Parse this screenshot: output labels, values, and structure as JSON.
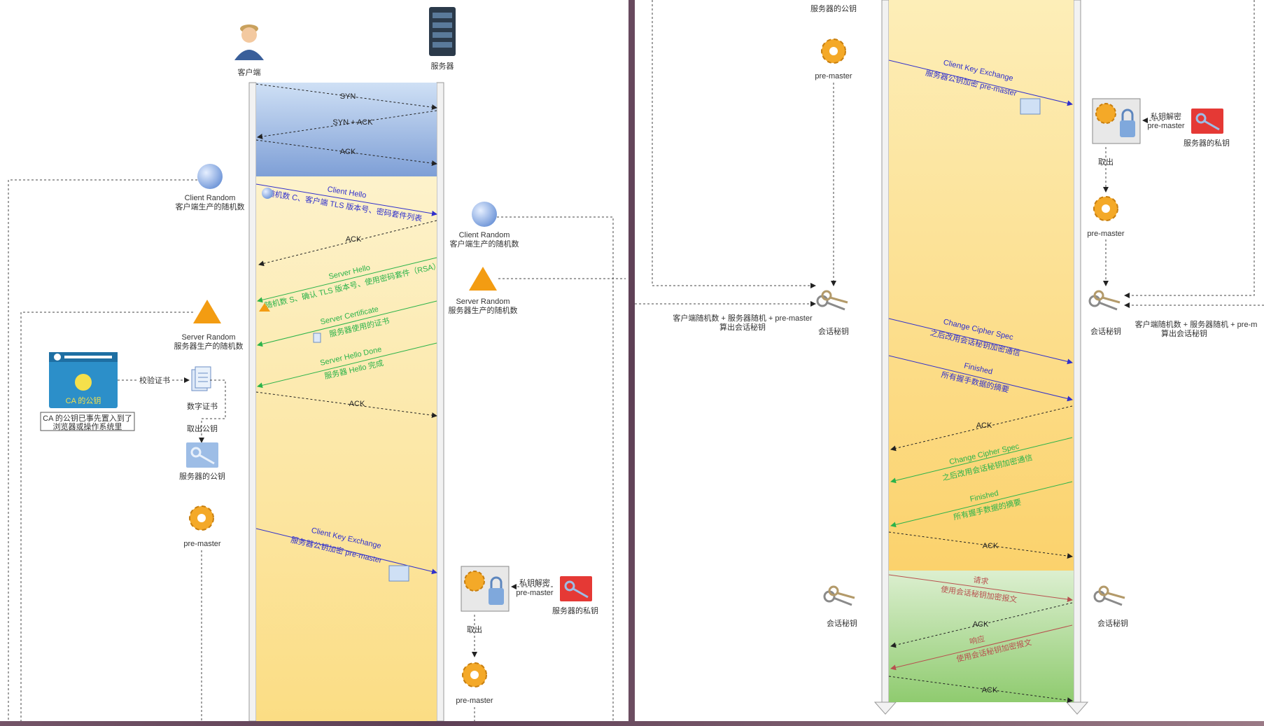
{
  "colors": {
    "handshake_tcp": "#8aa9d8",
    "handshake_tls": "#fdeaa6",
    "data_phase": "#a8d48f",
    "client_arrow": "#3030cc",
    "server_arrow": "#2bb34a",
    "data_arrow": "#b8504e",
    "ack_arrow": "#222222"
  },
  "left": {
    "actors": {
      "client": "客户端",
      "server": "服务器"
    },
    "tcp": {
      "syn": "SYN",
      "synack": "SYN + ACK",
      "ack": "ACK"
    },
    "client_hello": {
      "title": "Client Hello",
      "desc": "随机数 C、客户端 TLS 版本号、密码套件列表"
    },
    "ack1": "ACK",
    "server_hello": {
      "title": "Server Hello",
      "desc": "随机数 S、确认 TLS 版本号、使用密码套件（RSA）"
    },
    "server_cert": {
      "title": "Server Certificate",
      "desc": "服务器使用的证书"
    },
    "server_hello_done": {
      "title": "Server Hello Done",
      "desc": "服务器 Hello 完成"
    },
    "ack2": "ACK",
    "client_key_exchange": {
      "title": "Client Key Exchange",
      "desc": "服务器公钥加密 pre-master"
    },
    "client_random": {
      "title": "Client Random",
      "desc": "客户端生产的随机数"
    },
    "server_random": {
      "title": "Server Random",
      "desc": "服务器生产的随机数"
    },
    "ca_label": "CA 的公钥",
    "ca_note_1": "CA 的公钥已事先置入到了",
    "ca_note_2": "浏览器或操作系统里",
    "verify_cert": "校验证书",
    "digital_cert": "数字证书",
    "take_pubkey": "取出公钥",
    "server_pubkey": "服务器的公钥",
    "pre_master": "pre-master",
    "priv_decrypt_1": "私钥解密",
    "priv_decrypt_2": "pre-master",
    "server_privkey": "服务器的私钥",
    "take_out": "取出",
    "pre_master_server": "pre-master"
  },
  "right": {
    "server_pubkey_top": "服务器的公钥",
    "pre_master_client": "pre-master",
    "client_key_exchange": {
      "title": "Client Key Exchange",
      "desc": "服务器公钥加密 pre-master"
    },
    "priv_decrypt_1": "私钥解密",
    "priv_decrypt_2": "pre-master",
    "server_privkey": "服务器的私钥",
    "take_out": "取出",
    "pre_master_server": "pre-master",
    "compute_client_1": "客户端随机数 + 服务器随机 + pre-master",
    "compute_client_2": "算出会话秘钥",
    "session_key": "会话秘钥",
    "compute_server_1": "客户端随机数 + 服务器随机 + pre-m",
    "compute_server_2": "算出会话秘钥",
    "ccs_client": {
      "title": "Change Cipher Spec",
      "desc": "之后改用会话秘钥加密通信"
    },
    "finished_client": {
      "title": "Finished",
      "desc": "所有握手数据的摘要"
    },
    "ack1": "ACK",
    "ccs_server": {
      "title": "Change Cipher Spec",
      "desc": "之后改用会话秘钥加密通信"
    },
    "finished_server": {
      "title": "Finished",
      "desc": "所有握手数据的摘要"
    },
    "ack2": "ACK",
    "request": {
      "title": "请求",
      "desc": "使用会话秘钥加密报文"
    },
    "ack3": "ACK",
    "response": {
      "title": "响应",
      "desc": "使用会话秘钥加密报文"
    },
    "ack4": "ACK",
    "session_key_client": "会话秘钥",
    "session_key_server": "会话秘钥"
  }
}
